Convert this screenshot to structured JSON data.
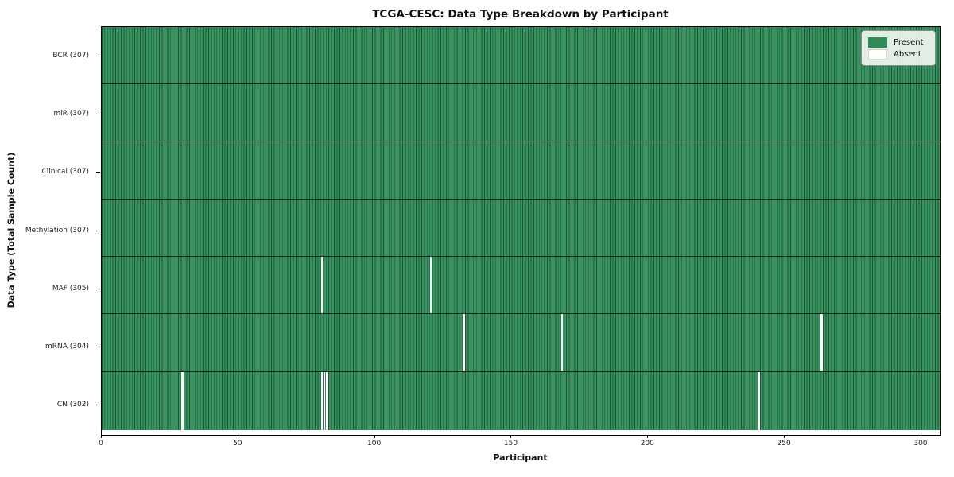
{
  "title": "TCGA-CESC: Data Type Breakdown by Participant",
  "axes": {
    "x_label": "Participant",
    "y_label": "Data Type (Total Sample Count)"
  },
  "legend": {
    "items": [
      {
        "label": "Present",
        "color": "#2e8b57"
      },
      {
        "label": "Absent",
        "color": "#ffffff"
      }
    ]
  },
  "colors": {
    "present_fill": "#38935f",
    "cell_edge": "#1f5438",
    "absent_fill": "#ffffff",
    "frame": "#000000"
  },
  "chart_data": {
    "type": "heatmap",
    "title": "TCGA-CESC: Data Type Breakdown by Participant",
    "xlabel": "Participant",
    "ylabel": "Data Type (Total Sample Count)",
    "x_range": [
      0,
      307
    ],
    "n_participants": 307,
    "x_ticks": [
      0,
      50,
      100,
      150,
      200,
      250,
      300
    ],
    "legend_position": "upper right",
    "grid": false,
    "rows": [
      {
        "label": "BCR (307)",
        "data_type": "BCR",
        "total_samples": 307,
        "absent_participants": []
      },
      {
        "label": "miR (307)",
        "data_type": "miR",
        "total_samples": 307,
        "absent_participants": []
      },
      {
        "label": "Clinical (307)",
        "data_type": "Clinical",
        "total_samples": 307,
        "absent_participants": []
      },
      {
        "label": "Methylation (307)",
        "data_type": "Methylation",
        "total_samples": 307,
        "absent_participants": []
      },
      {
        "label": "MAF (305)",
        "data_type": "MAF",
        "total_samples": 305,
        "absent_participants": [
          80,
          120
        ]
      },
      {
        "label": "mRNA (304)",
        "data_type": "mRNA",
        "total_samples": 304,
        "absent_participants": [
          132,
          168,
          263
        ]
      },
      {
        "label": "CN (302)",
        "data_type": "CN",
        "total_samples": 302,
        "absent_participants": [
          29,
          80,
          81,
          82,
          240
        ]
      }
    ]
  }
}
